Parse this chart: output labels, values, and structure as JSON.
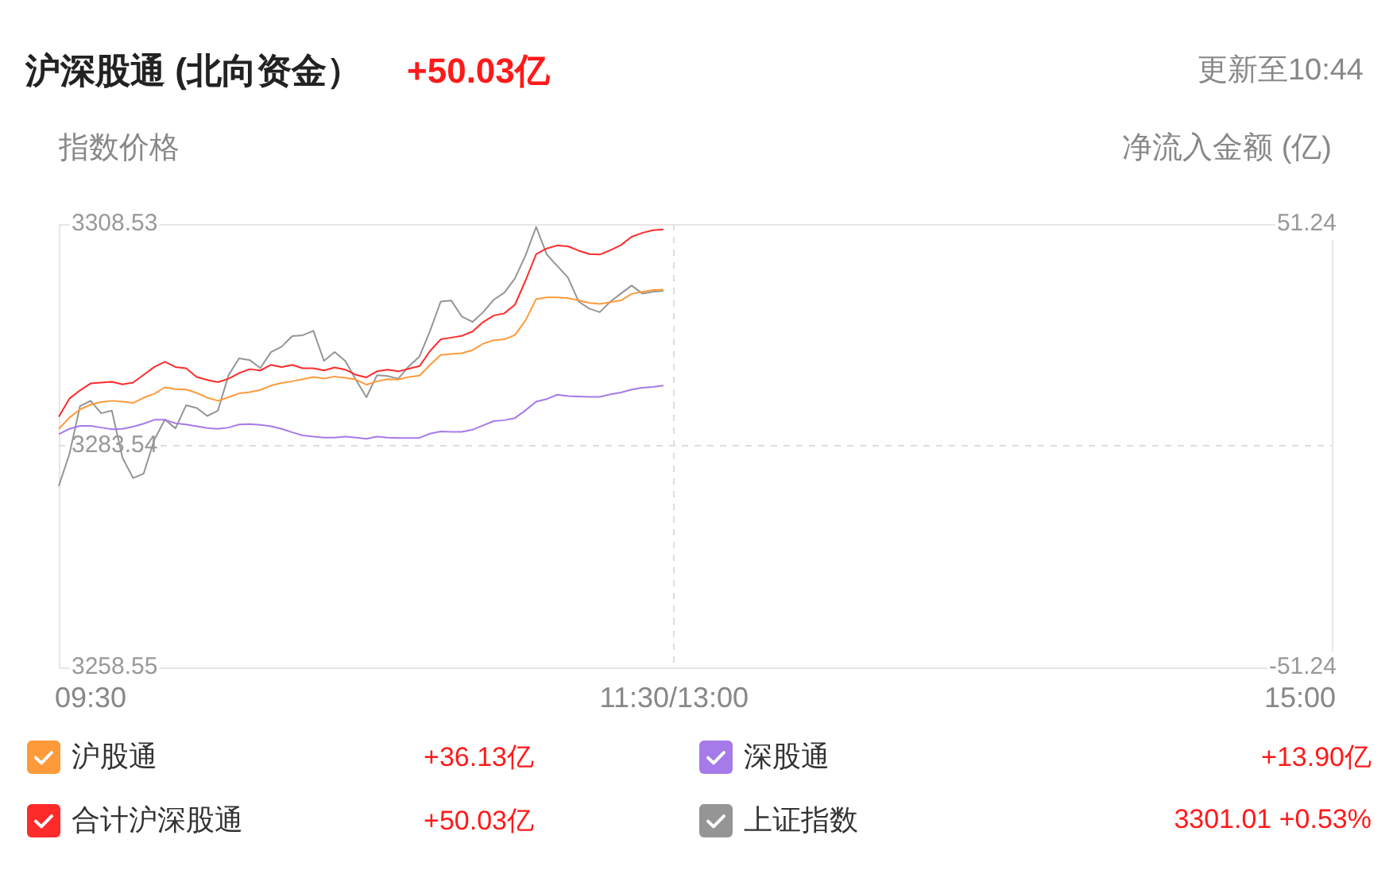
{
  "chart_data": {
    "type": "line",
    "title": "沪深股通 (北向资金）",
    "ylabel": "指数价格",
    "y2label": "净流入金额 (亿)",
    "annotations": [
      "+50.03亿",
      "更新至10:44",
      "+36.13亿",
      "+13.90亿",
      "+50.03亿",
      "3301.01 +0.53%"
    ],
    "categories": [
      null,
      null,
      null,
      "09:30",
      null,
      null,
      null,
      null,
      null,
      null,
      null,
      null,
      null,
      null,
      null,
      null,
      null,
      null,
      null,
      null,
      null,
      null,
      null,
      null,
      null,
      null,
      null,
      null,
      null,
      null,
      null,
      null,
      null,
      null,
      null,
      null,
      null,
      null,
      null,
      null,
      null,
      null,
      null,
      null,
      null,
      null,
      null,
      null,
      null,
      null,
      null,
      null,
      null,
      null,
      null,
      null,
      null,
      null,
      "11:30/13:00",
      null,
      null,
      null,
      null,
      null,
      null,
      null,
      null,
      null,
      null,
      null,
      null,
      null,
      null,
      null,
      null,
      null,
      null,
      null,
      null,
      null,
      null,
      null,
      null,
      null,
      null,
      null,
      null,
      null,
      null,
      null,
      null,
      null,
      null,
      null,
      null,
      null,
      null,
      null,
      null,
      null,
      null,
      null,
      null,
      null,
      null,
      null,
      null,
      null,
      null,
      null,
      null,
      null,
      null,
      null,
      null,
      null,
      null,
      "15:00",
      null,
      null,
      null
    ],
    "ylim": [
      3258.55,
      3308.53
    ],
    "yticks": [
      3258.55,
      3283.54,
      3308.53
    ],
    "y2lim": [
      -51.24,
      51.24
    ],
    "y2ticks": [
      -51.24,
      51.24
    ],
    "grid": true,
    "legend": "bottom",
    "marker": "none",
    "series": [
      {
        "name": "沪股通",
        "color": "#fe9a3a",
        "axis": "y2",
        "values": [
          3.9,
          6.5,
          8.4,
          9.5,
          10.1,
          10.4,
          10.2,
          9.9,
          11.1,
          12.0,
          13.5,
          13.1,
          13.0,
          12.2,
          11.1,
          10.4,
          11.2,
          12.1,
          12.4,
          12.9,
          13.9,
          14.5,
          14.9,
          15.4,
          15.9,
          15.5,
          16.0,
          15.7,
          15.3,
          14.1,
          14.9,
          15.4,
          15.3,
          15.9,
          16.2,
          18.7,
          21.0,
          21.2,
          21.4,
          22.1,
          23.6,
          24.4,
          24.6,
          25.6,
          29.0,
          33.9,
          34.3,
          34.3,
          34.1,
          33.6,
          33.0,
          32.8,
          33.2,
          33.6,
          35.1,
          35.6,
          36.0,
          36.1,
          null,
          null,
          null,
          null,
          null,
          null,
          null,
          null,
          null,
          null,
          null,
          null,
          null,
          null,
          null,
          null,
          null,
          null,
          null,
          null,
          null,
          null,
          null,
          null,
          null,
          null,
          null,
          null,
          null,
          null,
          null,
          null,
          null,
          null,
          null,
          null,
          null,
          null,
          null,
          null,
          null,
          null,
          null,
          null,
          null,
          null,
          null,
          null,
          null,
          null,
          null,
          null,
          null,
          null,
          null,
          null,
          null,
          null,
          null,
          null,
          null,
          null,
          null
        ]
      },
      {
        "name": "深股通",
        "color": "#a67ae9",
        "axis": "y2",
        "values": [
          2.7,
          3.9,
          4.6,
          4.6,
          4.2,
          3.8,
          3.9,
          4.4,
          5.1,
          6.0,
          6.0,
          5.2,
          4.9,
          4.5,
          4.1,
          3.9,
          4.2,
          4.9,
          5.0,
          4.8,
          4.5,
          3.9,
          3.1,
          2.4,
          2.1,
          1.9,
          1.9,
          2.1,
          1.9,
          1.6,
          2.1,
          1.9,
          1.8,
          1.8,
          1.8,
          2.8,
          3.3,
          3.2,
          3.2,
          3.7,
          4.7,
          5.7,
          5.9,
          6.4,
          8.2,
          10.2,
          10.8,
          11.8,
          11.5,
          11.4,
          11.3,
          11.3,
          11.9,
          12.3,
          13.0,
          13.4,
          13.6,
          13.9,
          null,
          null,
          null,
          null,
          null,
          null,
          null,
          null,
          null,
          null,
          null,
          null,
          null,
          null,
          null,
          null,
          null,
          null,
          null,
          null,
          null,
          null,
          null,
          null,
          null,
          null,
          null,
          null,
          null,
          null,
          null,
          null,
          null,
          null,
          null,
          null,
          null,
          null,
          null,
          null,
          null,
          null,
          null,
          null,
          null,
          null,
          null,
          null,
          null,
          null,
          null,
          null,
          null,
          null,
          null,
          null,
          null,
          null,
          null,
          null,
          null,
          null,
          null
        ]
      },
      {
        "name": "合计沪深股通",
        "color": "#fe2b2b",
        "axis": "y2",
        "values": [
          6.7,
          10.9,
          12.8,
          14.4,
          14.6,
          14.8,
          14.2,
          14.6,
          16.4,
          18.2,
          19.4,
          18.2,
          17.9,
          15.9,
          15.2,
          14.7,
          15.5,
          16.8,
          17.7,
          17.4,
          18.7,
          18.2,
          18.7,
          17.9,
          17.9,
          17.4,
          18.1,
          17.6,
          16.4,
          15.8,
          17.2,
          17.6,
          17.2,
          17.8,
          18.4,
          21.9,
          24.6,
          25.0,
          25.4,
          26.4,
          28.6,
          30.1,
          30.6,
          32.6,
          38.2,
          44.3,
          45.6,
          46.3,
          46.1,
          45.1,
          44.3,
          44.2,
          45.2,
          46.4,
          48.3,
          49.2,
          49.8,
          50.0,
          null,
          null,
          null,
          null,
          null,
          null,
          null,
          null,
          null,
          null,
          null,
          null,
          null,
          null,
          null,
          null,
          null,
          null,
          null,
          null,
          null,
          null,
          null,
          null,
          null,
          null,
          null,
          null,
          null,
          null,
          null,
          null,
          null,
          null,
          null,
          null,
          null,
          null,
          null,
          null,
          null,
          null,
          null,
          null,
          null,
          null,
          null,
          null,
          null,
          null,
          null,
          null,
          null,
          null,
          null,
          null,
          null,
          null,
          null,
          null,
          null,
          null,
          null
        ]
      },
      {
        "name": "上证指数",
        "color": "#959595",
        "axis": "y",
        "values": [
          3279.0,
          3282.6,
          3288.0,
          3288.6,
          3287.2,
          3287.5,
          3282.2,
          3279.9,
          3280.4,
          3284.2,
          3286.5,
          3285.5,
          3288.1,
          3287.8,
          3286.9,
          3287.5,
          3291.5,
          3293.4,
          3293.2,
          3292.3,
          3294.1,
          3294.7,
          3295.9,
          3296.0,
          3296.5,
          3293.1,
          3294.1,
          3293.1,
          3291.0,
          3289.0,
          3291.5,
          3291.4,
          3291.1,
          3292.5,
          3293.6,
          3296.5,
          3299.8,
          3299.9,
          3298.1,
          3297.5,
          3298.6,
          3300.0,
          3300.8,
          3302.4,
          3305.0,
          3308.2,
          3305.1,
          3303.8,
          3302.5,
          3299.8,
          3299.0,
          3298.6,
          3299.8,
          3300.7,
          3301.6,
          3300.7,
          3300.9,
          3301.0,
          null,
          null,
          null,
          null,
          null,
          null,
          null,
          null,
          null,
          null,
          null,
          null,
          null,
          null,
          null,
          null,
          null,
          null,
          null,
          null,
          null,
          null,
          null,
          null,
          null,
          null,
          null,
          null,
          null,
          null,
          null,
          null,
          null,
          null,
          null,
          null,
          null,
          null,
          null,
          null,
          null,
          null,
          null,
          null,
          null,
          null,
          null,
          null,
          null,
          null,
          null,
          null,
          null,
          null,
          null,
          null,
          null,
          null,
          null,
          null,
          null,
          null,
          null
        ]
      }
    ]
  }
}
